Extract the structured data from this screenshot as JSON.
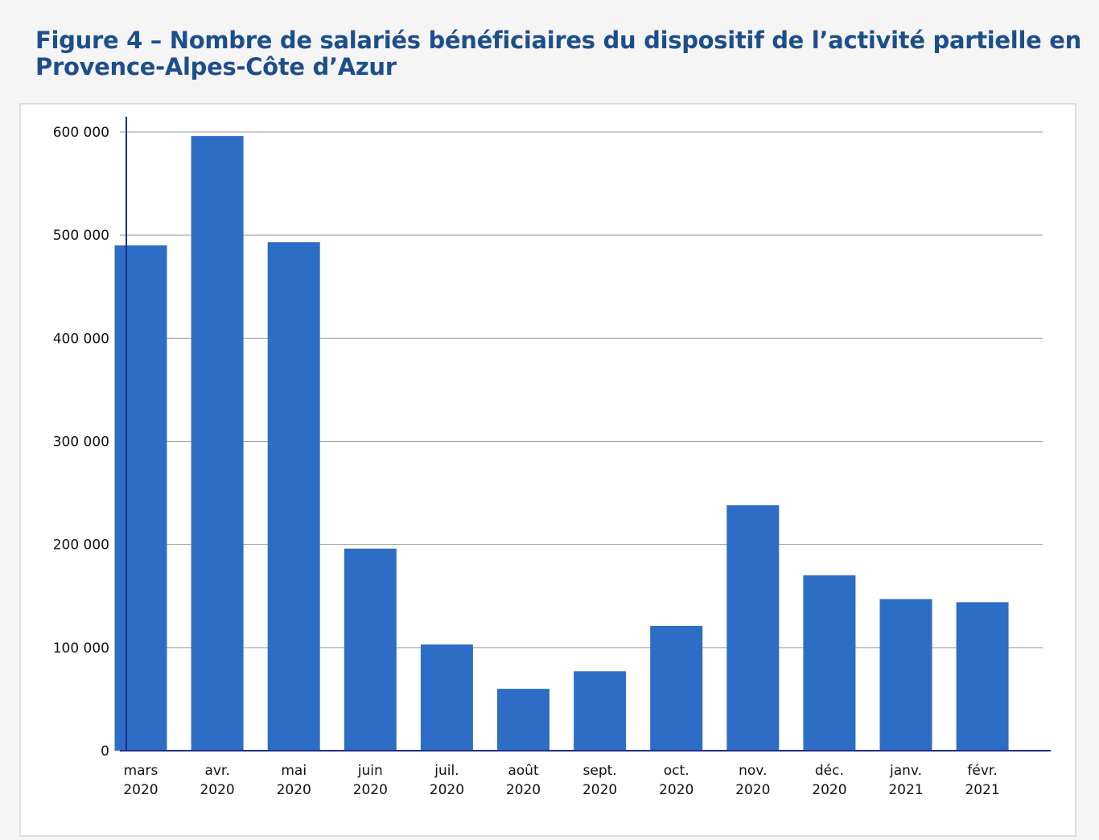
{
  "page": {
    "title": "Figure 4 – Nombre de salariés bénéficiaires du dispositif de l’activité partielle en Provence-Alpes-Côte d’Azur"
  },
  "colors": {
    "title": "#1d4e8c",
    "bar": "#2d6dc5",
    "axis": "#1f2d86",
    "grid": "#9a9a9a"
  },
  "chart_data": {
    "type": "bar",
    "title": "Figure 4 – Nombre de salariés bénéficiaires du dispositif de l’activité partielle en Provence-Alpes-Côte d’Azur",
    "xlabel": "",
    "ylabel": "",
    "categories": [
      [
        "mars",
        "2020"
      ],
      [
        "avr.",
        "2020"
      ],
      [
        "mai",
        "2020"
      ],
      [
        "juin",
        "2020"
      ],
      [
        "juil.",
        "2020"
      ],
      [
        "août",
        "2020"
      ],
      [
        "sept.",
        "2020"
      ],
      [
        "oct.",
        "2020"
      ],
      [
        "nov.",
        "2020"
      ],
      [
        "déc.",
        "2020"
      ],
      [
        "janv.",
        "2021"
      ],
      [
        "févr.",
        "2021"
      ]
    ],
    "values": [
      490000,
      596000,
      493000,
      196000,
      103000,
      60000,
      77000,
      121000,
      238000,
      170000,
      147000,
      144000
    ],
    "ylim": [
      0,
      600000
    ],
    "yticks": [
      {
        "value": 0,
        "label": "0"
      },
      {
        "value": 100000,
        "label": "100 000"
      },
      {
        "value": 200000,
        "label": "200 000"
      },
      {
        "value": 300000,
        "label": "300 000"
      },
      {
        "value": 400000,
        "label": "400 000"
      },
      {
        "value": 500000,
        "label": "500 000"
      },
      {
        "value": 600000,
        "label": "600 000"
      }
    ],
    "grid": true,
    "legend": "none"
  }
}
